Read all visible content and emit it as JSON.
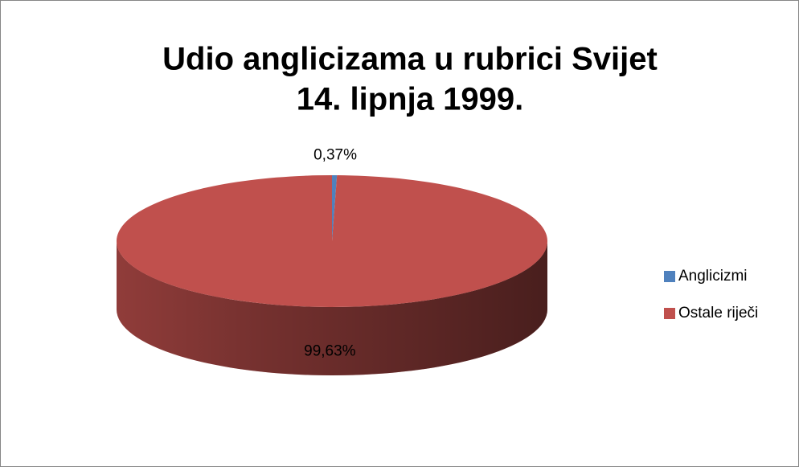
{
  "chart_data": {
    "type": "pie3d",
    "title": [
      "Udio anglicizama u rubrici Svijet",
      "14. lipnja 1999."
    ],
    "categories": [
      "Anglicizmi",
      "Ostale riječi"
    ],
    "values": [
      0.37,
      99.63
    ],
    "value_labels": [
      "0,37%",
      "99,63%"
    ],
    "colors": [
      "#4f81bd",
      "#c0504d"
    ],
    "legend": "right"
  }
}
